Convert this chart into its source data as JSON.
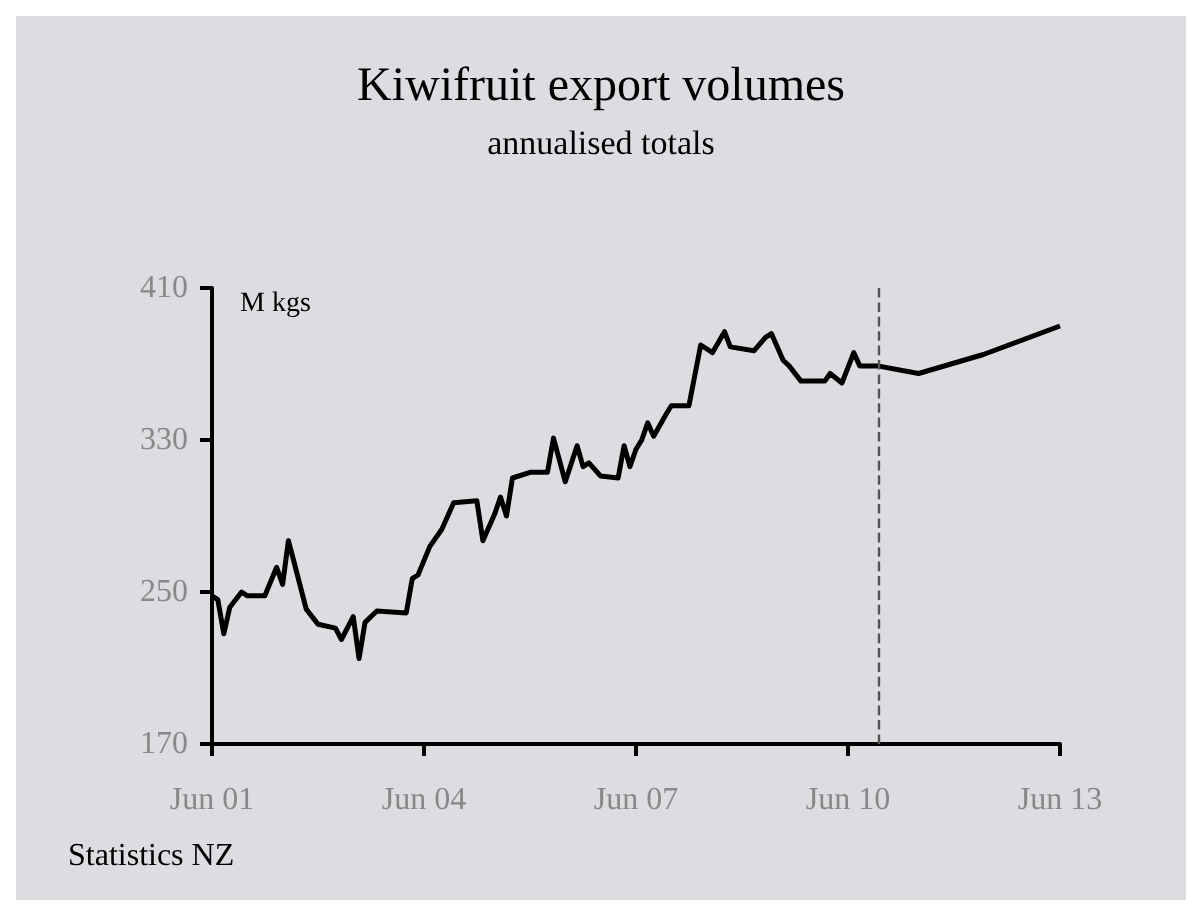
{
  "chart_data": {
    "type": "line",
    "title": "Kiwifruit export volumes",
    "subtitle": "annualised totals",
    "ylabel": "M kgs",
    "annotations": [
      "Statistics NZ"
    ],
    "x": [
      "2001-06",
      "2001-07",
      "2001-08",
      "2001-09",
      "2001-11",
      "2001-12",
      "2002-03",
      "2002-05",
      "2002-06",
      "2002-07",
      "2002-08",
      "2002-10",
      "2002-12",
      "2003-03",
      "2003-04",
      "2003-06",
      "2003-07",
      "2003-08",
      "2003-10",
      "2004-03",
      "2004-04",
      "2004-05",
      "2004-07",
      "2004-09",
      "2004-11",
      "2005-03",
      "2005-04",
      "2005-06",
      "2005-07",
      "2005-08",
      "2005-09",
      "2005-12",
      "2006-03",
      "2006-04",
      "2006-06",
      "2006-08",
      "2006-09",
      "2006-10",
      "2006-12",
      "2007-03",
      "2007-04",
      "2007-05",
      "2007-06",
      "2007-07",
      "2007-08",
      "2007-09",
      "2007-11",
      "2007-12",
      "2008-03",
      "2008-05",
      "2008-07",
      "2008-09",
      "2008-10",
      "2009-02",
      "2009-04",
      "2009-05",
      "2009-07",
      "2009-08",
      "2009-10",
      "2010-02",
      "2010-03",
      "2010-05",
      "2010-07",
      "2010-08",
      "2010-11",
      "2011-06",
      "2012-05",
      "2013-06"
    ],
    "series": [
      {
        "color": "#000000",
        "values": [
          248,
          246,
          228,
          242,
          250,
          248,
          248,
          263,
          254,
          277,
          265,
          241,
          233,
          231,
          225,
          237,
          215,
          234,
          240,
          239,
          257,
          259,
          274,
          283,
          297,
          298,
          277,
          291,
          300,
          290,
          310,
          313,
          313,
          331,
          308,
          327,
          316,
          318,
          311,
          310,
          327,
          316,
          325,
          330,
          339,
          332,
          343,
          348,
          348,
          380,
          376,
          387,
          379,
          377,
          384,
          386,
          372,
          369,
          361,
          361,
          365,
          360,
          376,
          369,
          369,
          365,
          375,
          390
        ]
      }
    ],
    "xlim": [
      "2001-06",
      "2013-06"
    ],
    "xticks": [
      {
        "value": "2001-06",
        "label": "Jun 01"
      },
      {
        "value": "2004-06",
        "label": "Jun 04"
      },
      {
        "value": "2007-06",
        "label": "Jun 07"
      },
      {
        "value": "2010-06",
        "label": "Jun 10"
      },
      {
        "value": "2013-06",
        "label": "Jun 13"
      }
    ],
    "ylim": [
      170,
      410
    ],
    "yticks": [
      170,
      250,
      330,
      410
    ],
    "ref_lines": [
      {
        "axis": "x",
        "value": "2010-11",
        "color": "#555555",
        "line_style": "dashed"
      }
    ],
    "marker": "none",
    "line_style": "solid"
  }
}
